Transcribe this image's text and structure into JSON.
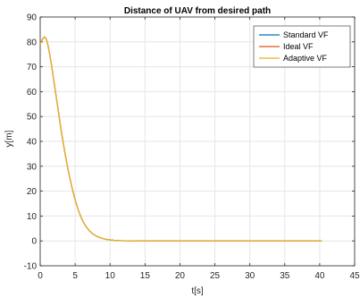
{
  "chart_data": {
    "type": "line",
    "title": "Distance of UAV from desired path",
    "xlabel": "t[s]",
    "ylabel": "y[m]",
    "xlim": [
      0,
      45
    ],
    "ylim": [
      -10,
      90
    ],
    "xticks": [
      0,
      5,
      10,
      15,
      20,
      25,
      30,
      35,
      40,
      45
    ],
    "yticks": [
      -10,
      0,
      10,
      20,
      30,
      40,
      50,
      60,
      70,
      80,
      90
    ],
    "grid": true,
    "legend_position": "top-right",
    "series": [
      {
        "name": "Standard VF",
        "color": "#0072BD",
        "x": [
          0,
          0.3,
          0.6,
          0.8,
          1.0,
          1.3,
          1.6,
          2,
          2.5,
          3,
          3.5,
          4,
          4.5,
          5,
          5.5,
          6,
          6.5,
          7,
          7.5,
          8,
          8.5,
          9,
          9.5,
          10,
          10.5,
          11,
          11.5,
          12,
          13,
          14,
          16,
          20,
          25,
          30,
          35,
          40.3
        ],
        "y": [
          79,
          81,
          82,
          81.5,
          80,
          76,
          71,
          63.5,
          54,
          44.5,
          36,
          28.5,
          22,
          16.5,
          12,
          8.5,
          6,
          4.2,
          2.9,
          2.0,
          1.4,
          0.9,
          0.6,
          0.4,
          0.25,
          0.15,
          0.1,
          0.05,
          0.02,
          0.01,
          0,
          0,
          0,
          0,
          0,
          0
        ]
      },
      {
        "name": "Ideal VF",
        "color": "#D95319",
        "x": [
          0,
          0.3,
          0.6,
          0.8,
          1.0,
          1.3,
          1.6,
          2,
          2.5,
          3,
          3.5,
          4,
          4.5,
          5,
          5.5,
          6,
          6.5,
          7,
          7.5,
          8,
          8.5,
          9,
          9.5,
          10,
          10.5,
          11,
          11.5,
          12,
          13,
          14,
          16,
          20,
          25,
          30,
          35,
          40.3
        ],
        "y": [
          79,
          81,
          82,
          81.5,
          80,
          76,
          71,
          63.5,
          54,
          44.5,
          36,
          28.5,
          22,
          16.5,
          12,
          8.5,
          6,
          4.2,
          2.9,
          2.0,
          1.4,
          0.9,
          0.6,
          0.4,
          0.25,
          0.15,
          0.1,
          0.05,
          0.02,
          0.01,
          0,
          0,
          0,
          0,
          0,
          0
        ]
      },
      {
        "name": "Adaptive VF",
        "color": "#EDB120",
        "x": [
          0,
          0.3,
          0.6,
          0.8,
          1.0,
          1.3,
          1.6,
          2,
          2.5,
          3,
          3.5,
          4,
          4.5,
          5,
          5.5,
          6,
          6.5,
          7,
          7.5,
          8,
          8.5,
          9,
          9.5,
          10,
          10.5,
          11,
          11.5,
          12,
          13,
          14,
          16,
          20,
          25,
          30,
          35,
          40.3
        ],
        "y": [
          79,
          81,
          82,
          81.5,
          80,
          76,
          71,
          63.5,
          54,
          44.5,
          36,
          28.5,
          22,
          16.5,
          12,
          8.5,
          6,
          4.2,
          2.9,
          2.0,
          1.4,
          0.9,
          0.6,
          0.4,
          0.25,
          0.15,
          0.1,
          0.05,
          0.02,
          0.01,
          0,
          0,
          0,
          0,
          0,
          0
        ]
      }
    ]
  }
}
